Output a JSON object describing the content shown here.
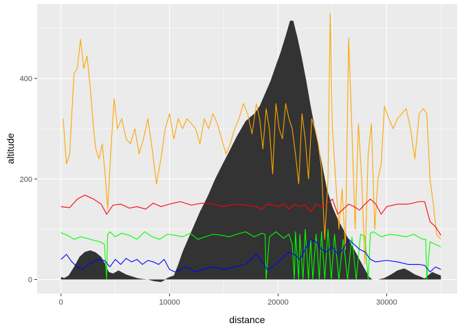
{
  "chart_data": {
    "type": "line",
    "title": "",
    "xlabel": "distance",
    "ylabel": "altitude",
    "xlim": [
      -2200,
      36500
    ],
    "ylim": [
      -28,
      548
    ],
    "x_ticks": [
      0,
      10000,
      20000,
      30000
    ],
    "x_tick_labels": [
      "0",
      "10000",
      "20000",
      "30000"
    ],
    "y_ticks": [
      0,
      200,
      400
    ],
    "y_tick_labels": [
      "0",
      "200",
      "400"
    ],
    "grid": true,
    "legend": "none",
    "colors": {
      "panel_bg": "#ebebeb",
      "grid_major": "#ffffff",
      "area": "#333333",
      "orange": "#ffa500",
      "red": "#ff0000",
      "green": "#00ff00",
      "blue": "#0000ff"
    },
    "area": {
      "x": [
        0,
        300,
        700,
        1200,
        1700,
        2200,
        2700,
        3200,
        3700,
        4100,
        4400,
        4800,
        5300,
        6000,
        7000,
        7500,
        8000,
        8500,
        9200,
        9500,
        9700,
        10000,
        10400,
        10800,
        11200,
        11700,
        12200,
        12800,
        13500,
        14200,
        14900,
        15500,
        16200,
        17000,
        17800,
        18300,
        18800,
        19300,
        19700,
        20200,
        20700,
        21100,
        21400,
        21800,
        22200,
        22600,
        23000,
        23500,
        24000,
        24500,
        25000,
        25500,
        26000,
        26500,
        27000,
        27500,
        28000,
        28400,
        28700,
        29200,
        29800,
        30400,
        31000,
        31600,
        32000,
        32600,
        33200,
        33500,
        33800,
        34200,
        34500,
        35000
      ],
      "y": [
        5,
        3,
        8,
        25,
        45,
        55,
        58,
        54,
        45,
        30,
        15,
        12,
        18,
        10,
        3,
        1,
        0,
        -3,
        -5,
        -2,
        2,
        5,
        8,
        30,
        55,
        80,
        105,
        135,
        165,
        200,
        230,
        255,
        285,
        315,
        330,
        345,
        370,
        395,
        420,
        450,
        485,
        515,
        515,
        480,
        440,
        395,
        345,
        290,
        235,
        180,
        145,
        120,
        100,
        80,
        60,
        40,
        20,
        5,
        0,
        0,
        3,
        10,
        18,
        22,
        18,
        10,
        5,
        2,
        8,
        15,
        12,
        8
      ]
    },
    "series": [
      {
        "color": "#ffa500",
        "x": [
          200,
          500,
          800,
          1200,
          1500,
          1800,
          2100,
          2400,
          2700,
          3000,
          3200,
          3500,
          3800,
          4100,
          4300,
          4600,
          4900,
          5200,
          5600,
          6000,
          6400,
          6800,
          7200,
          7600,
          8000,
          8400,
          8800,
          9200,
          9600,
          10000,
          10400,
          10800,
          11200,
          11600,
          12000,
          12400,
          12800,
          13200,
          13600,
          14000,
          14400,
          14800,
          15200,
          15600,
          16000,
          16400,
          16800,
          17200,
          17600,
          18000,
          18300,
          18600,
          18900,
          19200,
          19500,
          19800,
          20100,
          20400,
          20700,
          21000,
          21300,
          21600,
          21900,
          22200,
          22500,
          22800,
          23100,
          23400,
          23700,
          24000,
          24300,
          24600,
          24800,
          25000,
          25300,
          25600,
          25900,
          26200,
          26500,
          26800,
          27100,
          27400,
          27700,
          28000,
          28300,
          28600,
          28900,
          29200,
          29500,
          29800,
          30200,
          30600,
          31000,
          31400,
          31800,
          32200,
          32600,
          33000,
          33400,
          33700,
          34000,
          34300,
          34600,
          35000
        ],
        "y": [
          320,
          230,
          250,
          410,
          420,
          478,
          420,
          445,
          380,
          300,
          260,
          240,
          270,
          200,
          140,
          260,
          360,
          300,
          320,
          280,
          270,
          300,
          250,
          280,
          320,
          260,
          190,
          240,
          300,
          330,
          280,
          320,
          300,
          320,
          310,
          300,
          270,
          320,
          300,
          330,
          310,
          280,
          250,
          270,
          300,
          320,
          350,
          330,
          290,
          350,
          320,
          260,
          340,
          300,
          210,
          350,
          300,
          280,
          350,
          320,
          300,
          250,
          190,
          330,
          280,
          200,
          320,
          300,
          270,
          220,
          80,
          200,
          530,
          300,
          200,
          100,
          180,
          60,
          480,
          300,
          100,
          310,
          200,
          30,
          250,
          310,
          100,
          200,
          230,
          345,
          320,
          300,
          320,
          330,
          340,
          300,
          240,
          330,
          340,
          330,
          200,
          150,
          90,
          80
        ]
      },
      {
        "color": "#ff0000",
        "x": [
          0,
          800,
          1500,
          2200,
          3000,
          3700,
          4200,
          4800,
          5500,
          6300,
          7000,
          7800,
          8500,
          9200,
          10000,
          11000,
          12000,
          13000,
          14000,
          15000,
          16000,
          17000,
          18000,
          18500,
          19000,
          19500,
          20000,
          20600,
          21000,
          21500,
          22000,
          22500,
          23000,
          23500,
          24000,
          24500,
          25000,
          25500,
          26000,
          26500,
          27000,
          27500,
          28000,
          28500,
          29000,
          29500,
          30000,
          31000,
          32000,
          33000,
          33500,
          34000,
          34500,
          35000
        ],
        "y": [
          145,
          143,
          160,
          168,
          160,
          150,
          130,
          148,
          150,
          142,
          145,
          140,
          152,
          145,
          150,
          155,
          148,
          152,
          150,
          145,
          150,
          148,
          145,
          140,
          150,
          148,
          145,
          150,
          140,
          150,
          145,
          148,
          135,
          150,
          145,
          150,
          160,
          130,
          140,
          150,
          145,
          138,
          150,
          160,
          150,
          130,
          145,
          150,
          150,
          155,
          155,
          115,
          105,
          88
        ]
      },
      {
        "color": "#00ff00",
        "x": [
          0,
          600,
          1200,
          1800,
          2400,
          3000,
          3600,
          4000,
          4200,
          4300,
          4500,
          5000,
          5600,
          6300,
          7000,
          7700,
          8400,
          9100,
          9800,
          10500,
          11200,
          11900,
          12600,
          13300,
          14000,
          14800,
          15500,
          16200,
          17000,
          17800,
          18500,
          18800,
          18900,
          19200,
          19800,
          20500,
          21000,
          21300,
          21500,
          21600,
          21900,
          22000,
          22300,
          22500,
          22800,
          23000,
          23200,
          23500,
          23800,
          24000,
          24300,
          24600,
          24900,
          25200,
          25600,
          26000,
          26400,
          26800,
          27200,
          27600,
          28000,
          28300,
          28500,
          28800,
          29500,
          30300,
          31000,
          31800,
          32500,
          33300,
          33600,
          33700,
          34000,
          34500,
          35000
        ],
        "y": [
          93,
          88,
          80,
          85,
          82,
          78,
          75,
          70,
          0,
          90,
          95,
          85,
          92,
          88,
          80,
          95,
          85,
          80,
          90,
          88,
          85,
          92,
          80,
          85,
          90,
          88,
          85,
          90,
          95,
          85,
          92,
          90,
          0,
          85,
          95,
          82,
          90,
          70,
          0,
          95,
          0,
          90,
          0,
          100,
          0,
          80,
          0,
          90,
          0,
          95,
          0,
          100,
          0,
          90,
          0,
          80,
          0,
          85,
          0,
          90,
          85,
          0,
          92,
          95,
          85,
          90,
          88,
          85,
          90,
          80,
          80,
          0,
          75,
          70,
          65
        ]
      },
      {
        "color": "#0000ff",
        "x": [
          0,
          500,
          1000,
          1500,
          2000,
          2500,
          3000,
          3500,
          4000,
          4500,
          5000,
          5500,
          6000,
          6500,
          7000,
          7500,
          8000,
          8500,
          9000,
          9500,
          10000,
          10500,
          11000,
          11500,
          12000,
          12500,
          13000,
          14000,
          15000,
          16000,
          17000,
          18000,
          19000,
          19500,
          20000,
          20500,
          21000,
          21500,
          22000,
          22500,
          23000,
          23500,
          24000,
          24500,
          25000,
          25500,
          26000,
          26500,
          27000,
          27500,
          28000,
          28500,
          29000,
          30000,
          31000,
          32000,
          33000,
          33500,
          34000,
          34500,
          35000
        ],
        "y": [
          40,
          50,
          35,
          25,
          20,
          30,
          35,
          40,
          38,
          25,
          40,
          30,
          42,
          35,
          40,
          30,
          38,
          35,
          30,
          40,
          20,
          15,
          20,
          25,
          20,
          15,
          20,
          25,
          20,
          25,
          30,
          50,
          20,
          25,
          35,
          45,
          55,
          50,
          40,
          60,
          80,
          75,
          60,
          55,
          65,
          50,
          60,
          80,
          70,
          60,
          55,
          40,
          35,
          38,
          35,
          30,
          30,
          28,
          15,
          25,
          20
        ]
      }
    ]
  }
}
